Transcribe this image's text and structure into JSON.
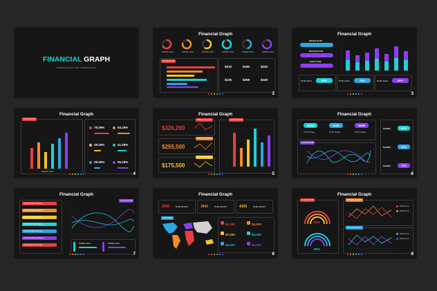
{
  "colors": {
    "background": "#262626",
    "slide": "#161616",
    "cyan": "#1fd1d6",
    "red": "#e8403f",
    "orange": "#f28c28",
    "yellow": "#f2c530",
    "blue": "#2ca7e0",
    "purple": "#8a3ff0"
  },
  "cover": {
    "title_a": "FINANCIAL",
    "title_b": " GRAPH",
    "subtitle": "PRESENTATION TEMPLATE"
  },
  "slide_title": "Financial Graph",
  "slides": {
    "s2": {
      "number": "2",
      "donut_label": "Subtitle Here",
      "chart_tag": "Overall Profit",
      "stats": [
        "$210",
        "$180",
        "$220",
        "$125",
        "$259",
        "$440"
      ]
    },
    "s3": {
      "number": "3",
      "labels": [
        "Weekly Profit",
        "Monthly Profit",
        "Yearly Profit"
      ],
      "profit_count": "Profit Count",
      "percents": [
        "60%",
        "75%",
        "90%"
      ]
    },
    "s4": {
      "number": "4",
      "tag": "Overall Profit",
      "axis": "Subtitle Here",
      "percents": [
        "79.25%",
        "64.25%",
        "29.25%",
        "41.25%",
        "28.25%",
        "55.25%"
      ]
    },
    "s5": {
      "number": "5",
      "values": [
        "$326,200",
        "$255,500",
        "$175,500"
      ],
      "tags": [
        "Phones Growth",
        "Phones Growth",
        "Phones Growth"
      ],
      "chart_tag": "Overall Profit"
    },
    "s6": {
      "number": "6",
      "values": [
        "$45M",
        "$29B",
        "$36M"
      ],
      "value_labels": [
        "Profit Target",
        "Profit Target",
        "Profit Target"
      ],
      "chart_tag": "Overall Profit",
      "side_label": "Subtitle",
      "side_percents": [
        "80%",
        "50%",
        "75%"
      ]
    },
    "s7": {
      "number": "7",
      "list": [
        "Overall New Shares",
        "Overall Sales Shares",
        "Overall Data Shares",
        "Overall Profit Shares",
        "Overall Data Shares",
        "Overall Rating Shares",
        "Overall Future Profit"
      ],
      "tag": "Overall Profit",
      "sub": "Subtitle Here"
    },
    "s8": {
      "number": "8",
      "top": [
        "2500",
        "3600",
        "4100"
      ],
      "top_label": "Profit Growth",
      "map_tag": "World Map",
      "values": [
        "$3,200",
        "$4,100",
        "$7,500",
        "$4,100",
        "$5,500",
        "$6,400"
      ]
    },
    "s9": {
      "number": "9",
      "tags": [
        "Overall Profit",
        "Phones Growth",
        "Phones Growth"
      ],
      "percents": [
        "65%",
        "80%"
      ],
      "legend": [
        "Data Here",
        "Data Here",
        "Data Here",
        "Data Here"
      ]
    }
  }
}
